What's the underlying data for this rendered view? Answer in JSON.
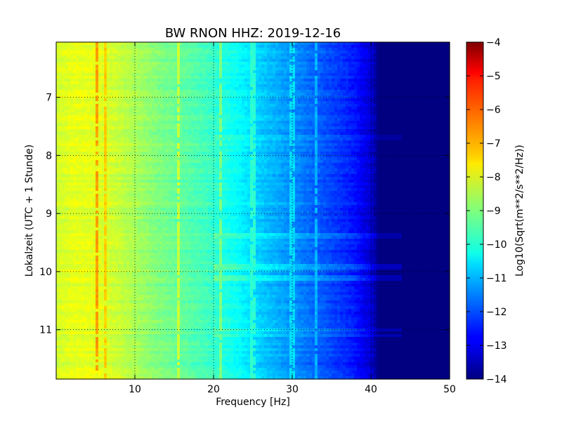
{
  "chart_data": {
    "type": "heatmap",
    "title": "BW RNON HHZ: 2019-12-16",
    "xlabel": "Frequency [Hz]",
    "ylabel": "Lokalzeit (UTC + 1 Stunde)",
    "colorbar_label": "Log10(Sqrt(m**2/s**2/Hz))",
    "colormap": "jet",
    "grid": true,
    "xlim": [
      0,
      50
    ],
    "ylim": [
      6.05,
      11.85
    ],
    "y_inverted": true,
    "x_ticks": [
      10,
      20,
      30,
      40,
      50
    ],
    "x_tick_labels": [
      "10",
      "20",
      "30",
      "40",
      "50"
    ],
    "y_ticks": [
      7,
      8,
      9,
      10,
      11
    ],
    "y_tick_labels": [
      "7",
      "8",
      "9",
      "10",
      "11"
    ],
    "clim": [
      -14,
      -4
    ],
    "colorbar_ticks": [
      -4,
      -5,
      -6,
      -7,
      -8,
      -9,
      -10,
      -11,
      -12,
      -13,
      -14
    ],
    "colorbar_tick_labels": [
      "−4",
      "−5",
      "−6",
      "−7",
      "−8",
      "−9",
      "−10",
      "−11",
      "−12",
      "−13",
      "−14"
    ],
    "frequency_profile": {
      "frequency_hz": [
        0,
        2,
        5,
        8,
        10,
        13,
        16,
        19,
        21,
        23,
        25,
        27,
        29,
        31,
        33,
        35,
        37,
        38,
        39,
        40,
        40.5,
        41,
        42,
        50
      ],
      "log10_psd": [
        -8.2,
        -8.0,
        -8.0,
        -8.3,
        -8.6,
        -9.0,
        -9.3,
        -9.6,
        -9.9,
        -10.2,
        -10.6,
        -10.9,
        -11.2,
        -11.5,
        -11.8,
        -12.1,
        -12.4,
        -12.6,
        -12.9,
        -13.2,
        -13.6,
        -14.0,
        -14.0,
        -14.0
      ]
    },
    "spectral_lines": [
      {
        "frequency_hz": 5.2,
        "log10_psd": -6.8
      },
      {
        "frequency_hz": 6.2,
        "log10_psd": -7.3
      },
      {
        "frequency_hz": 15.5,
        "log10_psd": -8.3
      },
      {
        "frequency_hz": 20.8,
        "log10_psd": -9.0
      },
      {
        "frequency_hz": 25.0,
        "log10_psd": -9.8
      },
      {
        "frequency_hz": 30.0,
        "log10_psd": -10.6
      },
      {
        "frequency_hz": 33.0,
        "log10_psd": -11.0
      }
    ],
    "noisy_hours": [
      {
        "time_h": 7.7,
        "delta": 0.3
      },
      {
        "time_h": 9.4,
        "delta": 0.4
      },
      {
        "time_h": 9.9,
        "delta": 0.6
      },
      {
        "time_h": 10.1,
        "delta": 0.5
      },
      {
        "time_h": 11.0,
        "delta": 0.6
      },
      {
        "time_h": 11.1,
        "delta": 0.5
      }
    ]
  }
}
